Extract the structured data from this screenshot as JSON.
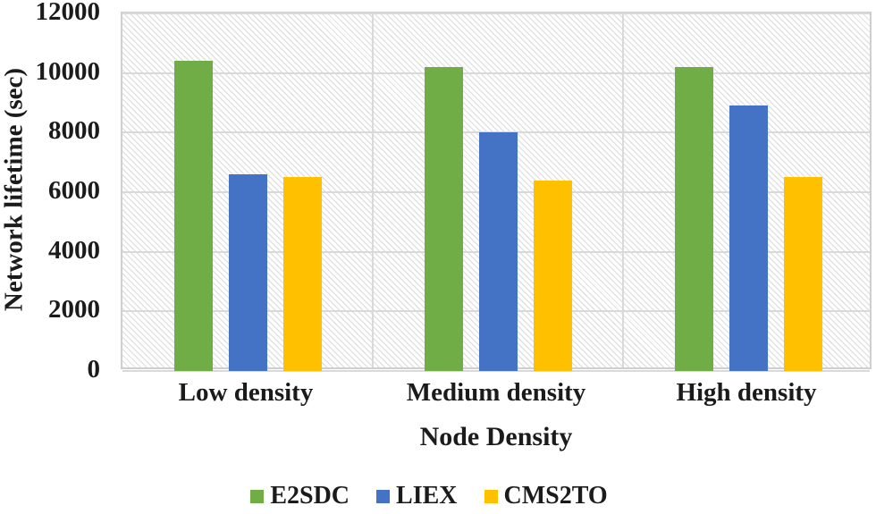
{
  "chart_data": {
    "type": "bar",
    "title": "",
    "xlabel": "Node Density",
    "ylabel": "Network lifetime (sec)",
    "categories": [
      "Low density",
      "Medium density",
      "High density"
    ],
    "series": [
      {
        "name": "E2SDC",
        "color": "#70AD47",
        "values": [
          10400,
          10200,
          10200
        ]
      },
      {
        "name": "LIEX",
        "color": "#4472C4",
        "values": [
          6600,
          8000,
          8900
        ]
      },
      {
        "name": "CMS2TO",
        "color": "#FFC000",
        "values": [
          6500,
          6400,
          6500
        ]
      }
    ],
    "ylim": [
      0,
      12000
    ],
    "ytick_step": 2000,
    "yticks": [
      "0",
      "2000",
      "4000",
      "6000",
      "8000",
      "10000",
      "12000"
    ],
    "grid": true,
    "grid_color": "#d9d9d9",
    "plot_background": "diagonal-hatch",
    "legend_position": "bottom"
  }
}
